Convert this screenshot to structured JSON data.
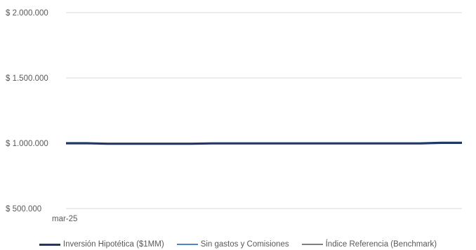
{
  "chart_data": {
    "type": "line",
    "title": "",
    "xlabel": "",
    "ylabel": "",
    "x_tick_labels": [
      "mar-25"
    ],
    "y_tick_labels": [
      "$ 2.000.000",
      "$ 1.500.000",
      "$ 1.000.000",
      "$ 500.000"
    ],
    "ylim": [
      500000,
      2000000
    ],
    "y_ticks": [
      2000000,
      1500000,
      1000000,
      500000
    ],
    "grid": true,
    "legend_position": "bottom",
    "n_points": 20,
    "series": [
      {
        "name": "Inversión Hipotética ($1MM)",
        "color": "#1f3864",
        "values": [
          1000000,
          1000000,
          996000,
          996000,
          996000,
          996000,
          996000,
          999000,
          999000,
          999000,
          999000,
          999000,
          999000,
          999000,
          999000,
          999000,
          999000,
          999000,
          1003000,
          1003000
        ]
      },
      {
        "name": "Sin gastos y Comisiones",
        "color": "#4a86c8",
        "values": [
          1000000,
          1000000,
          996500,
          996500,
          996500,
          996500,
          996500,
          999500,
          999500,
          999500,
          999500,
          999500,
          999500,
          999500,
          999500,
          999500,
          999500,
          999500,
          1003500,
          1003500
        ]
      },
      {
        "name": "Índice Referencia (Benchmark)",
        "color": "#7f7f7f",
        "values": [
          1000000,
          1000000,
          998000,
          998000,
          998000,
          998000,
          998000,
          1000000,
          1000000,
          1000000,
          1000000,
          1000000,
          1000000,
          1000000,
          1000000,
          1000000,
          1000000,
          1000000,
          1002000,
          1002000
        ]
      }
    ]
  }
}
